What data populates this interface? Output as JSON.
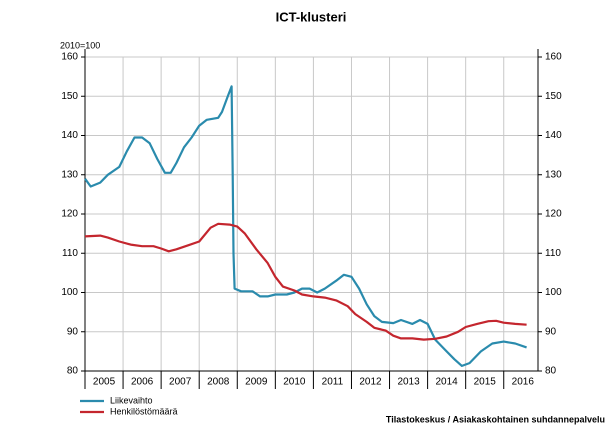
{
  "chart_data": {
    "type": "line",
    "title": "ICT-klusteri",
    "y_label": "2010=100",
    "source": "Tilastokeskus / Asiakaskohtainen suhdannepalvelu",
    "xlim": [
      2005,
      2016.9
    ],
    "xticks": [
      2005,
      2006,
      2007,
      2008,
      2009,
      2010,
      2011,
      2012,
      2013,
      2014,
      2015,
      2016
    ],
    "ylim": [
      80,
      160
    ],
    "yticks": [
      80,
      90,
      100,
      110,
      120,
      130,
      140,
      150,
      160
    ],
    "grid": true,
    "legend": "bottom-left",
    "series": [
      {
        "name": "Liikevaihto",
        "color": "#2a8bad",
        "x": [
          2005.0,
          2005.15,
          2005.4,
          2005.6,
          2005.9,
          2006.1,
          2006.3,
          2006.5,
          2006.7,
          2006.9,
          2007.1,
          2007.25,
          2007.4,
          2007.6,
          2007.8,
          2008.0,
          2008.2,
          2008.5,
          2008.6,
          2008.75,
          2008.85,
          2008.88,
          2008.9,
          2008.93,
          2009.1,
          2009.4,
          2009.6,
          2009.8,
          2010.0,
          2010.3,
          2010.5,
          2010.7,
          2010.9,
          2011.1,
          2011.3,
          2011.6,
          2011.8,
          2012.0,
          2012.2,
          2012.4,
          2012.6,
          2012.8,
          2013.1,
          2013.3,
          2013.6,
          2013.8,
          2014.0,
          2014.2,
          2014.5,
          2014.7,
          2014.9,
          2015.1,
          2015.4,
          2015.7,
          2016.0,
          2016.3,
          2016.6
        ],
        "values": [
          129,
          127,
          128,
          130,
          132,
          136,
          139.5,
          139.5,
          138,
          134,
          130.5,
          130.5,
          133,
          137,
          139.5,
          142.5,
          144,
          144.5,
          146,
          150,
          152.5,
          130,
          110,
          101,
          100.3,
          100.3,
          99,
          99,
          99.5,
          99.5,
          100,
          101,
          101,
          100,
          101,
          103,
          104.5,
          104,
          101,
          97,
          94,
          92.5,
          92.2,
          93,
          92,
          93,
          92,
          88,
          85,
          83,
          81.3,
          82,
          85,
          87,
          87.5,
          87,
          86
        ]
      },
      {
        "name": "Henkilöstömäärä",
        "color": "#c4262e",
        "x": [
          2005.0,
          2005.4,
          2005.6,
          2005.9,
          2006.2,
          2006.5,
          2006.8,
          2007.0,
          2007.2,
          2007.4,
          2007.7,
          2008.0,
          2008.3,
          2008.5,
          2008.8,
          2009.0,
          2009.2,
          2009.5,
          2009.8,
          2010.0,
          2010.2,
          2010.5,
          2010.7,
          2011.0,
          2011.3,
          2011.6,
          2011.9,
          2012.1,
          2012.4,
          2012.6,
          2012.9,
          2013.1,
          2013.3,
          2013.6,
          2013.9,
          2014.2,
          2014.5,
          2014.8,
          2015.0,
          2015.3,
          2015.6,
          2015.8,
          2016.0,
          2016.3,
          2016.6
        ],
        "values": [
          114.3,
          114.5,
          114,
          113,
          112.2,
          111.8,
          111.8,
          111.2,
          110.5,
          111,
          112,
          113,
          116.5,
          117.5,
          117.3,
          116.8,
          115,
          111,
          107.5,
          104,
          101.5,
          100.5,
          99.5,
          99,
          98.7,
          98,
          96.5,
          94.5,
          92.5,
          91,
          90.3,
          89,
          88.3,
          88.3,
          88,
          88.2,
          88.8,
          90,
          91.2,
          92,
          92.7,
          92.8,
          92.3,
          92,
          91.8
        ]
      }
    ]
  }
}
